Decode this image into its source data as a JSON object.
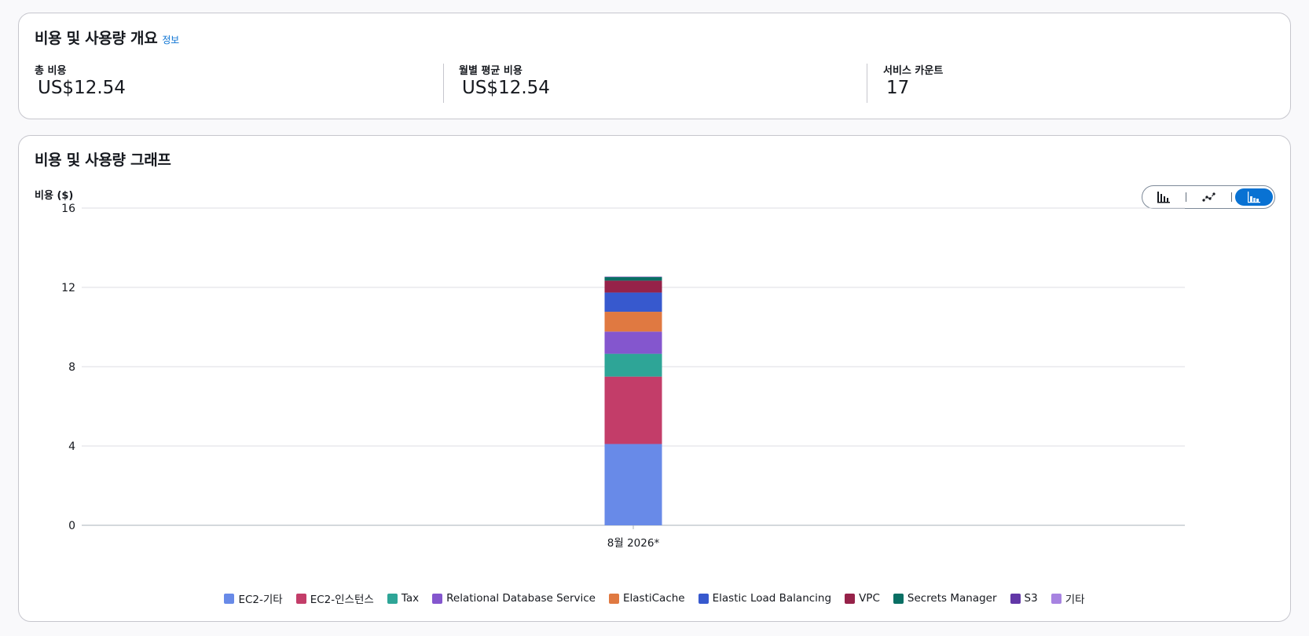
{
  "overview": {
    "title": "비용 및 사용량 개요",
    "info_link": "정보",
    "metrics": [
      {
        "label": "총 비용",
        "value": "US$12.54"
      },
      {
        "label": "월별 평균 비용",
        "value": "US$12.54"
      },
      {
        "label": "서비스 카운트",
        "value": "17"
      }
    ]
  },
  "graph": {
    "title": "비용 및 사용량 그래프",
    "chart_type_toggle": {
      "options": [
        "bar-chart-icon",
        "line-chart-icon",
        "stacked-bar-chart-icon"
      ],
      "selected": "stacked-bar-chart-icon",
      "accent": "#0972d3"
    }
  },
  "chart_data": {
    "type": "bar",
    "stacked": true,
    "title": "",
    "ylabel": "비용 ($)",
    "xlabel": "",
    "ylim": [
      0,
      16
    ],
    "yticks": [
      0,
      4,
      8,
      12,
      16
    ],
    "categories": [
      "8월 2026*"
    ],
    "grid": true,
    "legend_position": "bottom",
    "series": [
      {
        "name": "EC2-기타",
        "color": "#688ae8",
        "values": [
          4.1
        ]
      },
      {
        "name": "EC2-인스턴스",
        "color": "#c33d69",
        "values": [
          3.4
        ]
      },
      {
        "name": "Tax",
        "color": "#2ea597",
        "values": [
          1.15
        ]
      },
      {
        "name": "Relational Database Service",
        "color": "#8456ce",
        "values": [
          1.12
        ]
      },
      {
        "name": "ElastiCache",
        "color": "#e07941",
        "values": [
          1.0
        ]
      },
      {
        "name": "Elastic Load Balancing",
        "color": "#3759ce",
        "values": [
          0.97
        ]
      },
      {
        "name": "VPC",
        "color": "#962249",
        "values": [
          0.6
        ]
      },
      {
        "name": "Secrets Manager",
        "color": "#096f64",
        "values": [
          0.18
        ]
      },
      {
        "name": "S3",
        "color": "#6237a7",
        "values": [
          0.02
        ]
      },
      {
        "name": "기타",
        "color": "#a783e1",
        "values": [
          0.0
        ]
      }
    ]
  }
}
